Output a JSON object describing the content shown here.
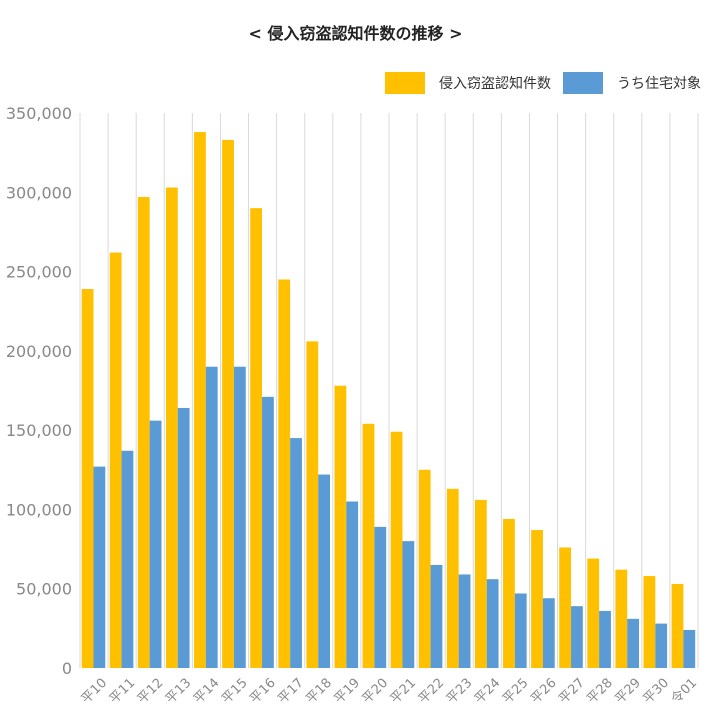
{
  "colors": {
    "series1": "#FFC000",
    "series2": "#5B9BD5",
    "grid": "#D9D9D9",
    "axis_text": "#888888"
  },
  "chart_data": {
    "type": "bar",
    "title": "< 侵入窃盗認知件数の推移 >",
    "xlabel": "",
    "ylabel": "",
    "ylim": [
      0,
      350000
    ],
    "yticks": [
      "0",
      "50,000",
      "100,000",
      "150,000",
      "200,000",
      "250,000",
      "300,000",
      "350,000"
    ],
    "legend_position": "top-right",
    "grid": "vertical",
    "categories": [
      "平10",
      "平11",
      "平12",
      "平13",
      "平14",
      "平15",
      "平16",
      "平17",
      "平18",
      "平19",
      "平20",
      "平21",
      "平22",
      "平23",
      "平24",
      "平25",
      "平26",
      "平27",
      "平28",
      "平29",
      "平30",
      "令01"
    ],
    "series": [
      {
        "name": "侵入窃盗認知件数",
        "values": [
          239000,
          262000,
          297000,
          303000,
          338000,
          333000,
          290000,
          245000,
          206000,
          178000,
          154000,
          149000,
          125000,
          113000,
          106000,
          94000,
          87000,
          76000,
          69000,
          62000,
          58000,
          53000
        ]
      },
      {
        "name": "うち住宅対象",
        "values": [
          127000,
          137000,
          156000,
          164000,
          190000,
          190000,
          171000,
          145000,
          122000,
          105000,
          89000,
          80000,
          65000,
          59000,
          56000,
          47000,
          44000,
          39000,
          36000,
          31000,
          28000,
          24000
        ]
      }
    ]
  }
}
